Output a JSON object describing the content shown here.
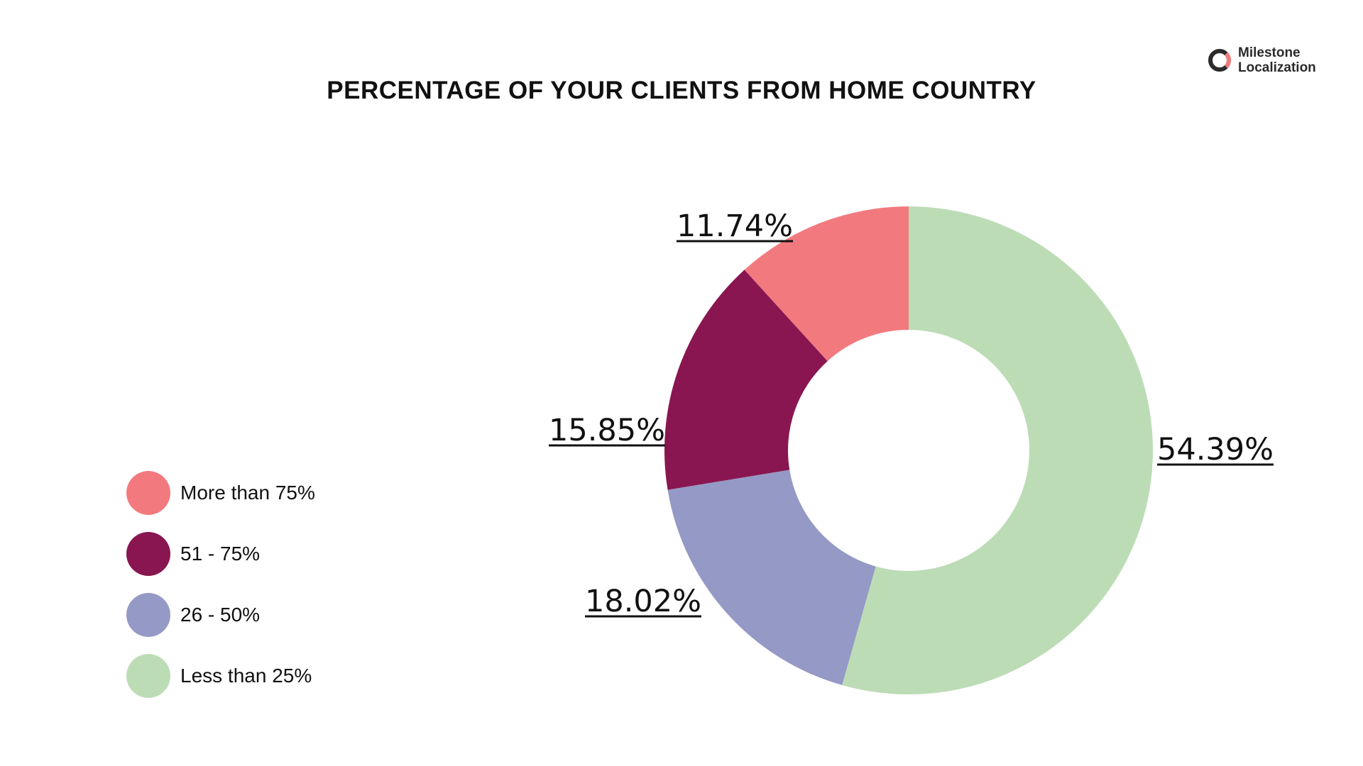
{
  "title": "PERCENTAGE OF YOUR CLIENTS FROM HOME COUNTRY",
  "logo": {
    "line1": "Milestone",
    "line2": "Localization",
    "ring_color": "#2b2b2b",
    "accent_color": "#f07b7b"
  },
  "chart_data": {
    "type": "pie",
    "donut": true,
    "title": "PERCENTAGE OF YOUR CLIENTS FROM HOME COUNTRY",
    "legend_position": "bottom-left",
    "slices": [
      {
        "name": "More than 75%",
        "value": 11.74,
        "label": "11.74%",
        "color": "#f27a7f"
      },
      {
        "name": "51 - 75%",
        "value": 15.85,
        "label": "15.85%",
        "color": "#891650"
      },
      {
        "name": "26 - 50%",
        "value": 18.02,
        "label": "18.02%",
        "color": "#9599c5"
      },
      {
        "name": "Less than 25%",
        "value": 54.39,
        "label": "54.39%",
        "color": "#bcdcb6"
      }
    ]
  }
}
